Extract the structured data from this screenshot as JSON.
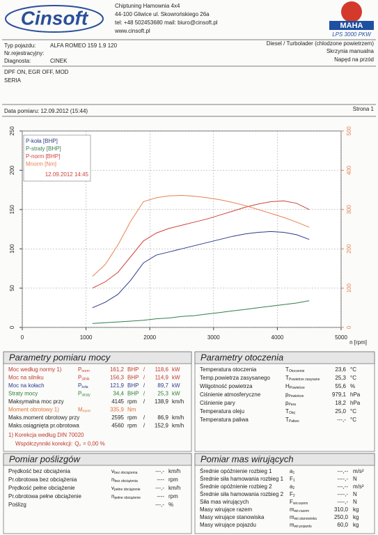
{
  "header": {
    "logo": "Cinsoft",
    "company": [
      "Chiptuning Hamownia 4x4",
      "44-100 Gliwice ul. Skowrońskiego 26a",
      "tel: +48 502453680  mail: biuro@cinsoft.pl",
      "www.cinsoft.pl"
    ],
    "brand": "MAHA",
    "model": "LPS 3000 PKW"
  },
  "vehicle": {
    "fields": [
      {
        "label": "Typ pojazdu:",
        "value": "ALFA ROMEO 159 1.9 120"
      },
      {
        "label": "Nr.rejestracyjny:"
      },
      {
        "label": "Diagnosta:",
        "value": "CINEK"
      }
    ],
    "engine": [
      "Diesel / Turbolader (chlodzone powietrzem)",
      "Skrzynia manualna",
      "Napęd na przód"
    ],
    "notes": [
      "DPF ON, EGR OFF, MOD",
      "SERIA"
    ],
    "date": "Data pomiaru: 12.09.2012 (15:44)",
    "page": "Strona 1"
  },
  "chart_data": {
    "type": "line",
    "x_label": "n [rpm]",
    "xlim": [
      0,
      5000
    ],
    "xticks": [
      0,
      1000,
      2000,
      3000,
      4000,
      5000
    ],
    "ylim": [
      0,
      250
    ],
    "yticks": [
      0,
      50,
      100,
      150,
      200,
      250
    ],
    "y2lim": [
      0,
      500
    ],
    "y2ticks": [
      0,
      100,
      200,
      300,
      400,
      500
    ],
    "grid": true,
    "legend": "top-left",
    "legend_note": "12.09.2012 14:45",
    "x": [
      1100,
      1300,
      1500,
      1700,
      1900,
      2100,
      2300,
      2500,
      2700,
      2900,
      3100,
      3300,
      3500,
      3700,
      3900,
      4100,
      4300,
      4500
    ],
    "series": [
      {
        "name": "P-koła [BHP]",
        "color": "#2b3a8a",
        "values": [
          25,
          32,
          42,
          60,
          82,
          92,
          96,
          100,
          104,
          108,
          112,
          116,
          119,
          121,
          122,
          121,
          118,
          112
        ]
      },
      {
        "name": "P-straty [BHP]",
        "color": "#2e7d4f",
        "values": [
          5,
          6,
          7,
          8,
          9,
          11,
          12,
          14,
          15,
          17,
          19,
          21,
          23,
          25,
          27,
          29,
          31,
          34
        ]
      },
      {
        "name": "P-norm [BHP]",
        "color": "#d0403a",
        "values": [
          50,
          58,
          70,
          90,
          110,
          120,
          126,
          130,
          134,
          138,
          143,
          148,
          153,
          157,
          160,
          161,
          158,
          150
        ]
      },
      {
        "name": "Mnorm [Nm]",
        "color": "#e8804f",
        "axis": "y2",
        "values": [
          130,
          160,
          210,
          270,
          320,
          330,
          335,
          336,
          334,
          330,
          325,
          318,
          310,
          300,
          290,
          280,
          268,
          255
        ]
      }
    ]
  },
  "sections": [
    {
      "title": "Parametry pomiaru mocy",
      "rows": [
        {
          "label": "Moc według normy 1)",
          "symbol": {
            "main": "P",
            "sub": "norm"
          },
          "cells": [
            "161,2",
            "BHP",
            "/",
            "118,6",
            "kW"
          ],
          "color": "#c0392b"
        },
        {
          "label": "Moc na silniku",
          "symbol": {
            "main": "P",
            "sub": "silnik"
          },
          "cells": [
            "156,3",
            "BHP",
            "/",
            "114,9",
            "kW"
          ],
          "color": "#c0392b"
        },
        {
          "label": "Moc na kołach",
          "symbol": {
            "main": "P",
            "sub": "koła"
          },
          "cells": [
            "121,9",
            "BHP",
            "/",
            "89,7",
            "kW"
          ],
          "color": "#2b3a8a"
        },
        {
          "label": "Straty mocy",
          "symbol": {
            "main": "P",
            "sub": "straty"
          },
          "cells": [
            "34,4",
            "BHP",
            "/",
            "25,3",
            "kW"
          ],
          "color": "#2e7d32"
        },
        {
          "label": "Maksymalna moc przy",
          "cells": [
            "4145",
            "rpm",
            "/",
            "138,9",
            "km/h"
          ]
        },
        {
          "label": "Moment obrotowy 1)",
          "symbol": {
            "main": "M",
            "sub": "norm"
          },
          "cells": [
            "335,9",
            "Nm"
          ],
          "color": "#e07030"
        },
        {
          "label": "Maks.moment obrotowy przy",
          "cells": [
            "2595",
            "rpm",
            "/",
            "86,9",
            "km/h"
          ]
        },
        {
          "label": "Maks.osiągnięta pr.obrotowa",
          "cells": [
            "4560",
            "rpm",
            "/",
            "152,9",
            "km/h"
          ]
        }
      ],
      "footnotes": [
        {
          "text": "1) Korekcja według DIN 70020"
        },
        {
          "text": "Współczynniki korekcji:",
          "symbol": {
            "main": "Q",
            "sub": "v"
          },
          "value": "= 0,00 %"
        }
      ]
    },
    {
      "title": "Parametry otoczenia",
      "rows": [
        {
          "label": "Temperatura otoczenia",
          "symbol": {
            "main": "T",
            "sub": "Otoczenie"
          },
          "cells": [
            "23,6",
            "°C"
          ]
        },
        {
          "label": "Temp.powietrza zasysanego",
          "symbol": {
            "main": "T",
            "sub": "Powietrze zasysane"
          },
          "cells": [
            "25,3",
            "°C"
          ]
        },
        {
          "label": "Wilgotność powietrza",
          "symbol": {
            "main": "H",
            "sub": "Powietrze"
          },
          "cells": [
            "55,6",
            "%"
          ]
        },
        {
          "label": "Ciśnienie atmosferyczne",
          "symbol": {
            "main": "p",
            "sub": "Powietrze"
          },
          "cells": [
            "979,1",
            "hPa"
          ]
        },
        {
          "label": "Ciśnienie pary",
          "symbol": {
            "main": "p",
            "sub": "Para"
          },
          "cells": [
            "18,2",
            "hPa"
          ]
        },
        {
          "label": "Temperatura oleju",
          "symbol": {
            "main": "T",
            "sub": "Olej"
          },
          "cells": [
            "25,0",
            "°C"
          ]
        },
        {
          "label": "Temperatura paliwa",
          "symbol": {
            "main": "T",
            "sub": "Paliwo"
          },
          "cells": [
            "---,-",
            "°C"
          ]
        }
      ]
    },
    {
      "title": "Pomiar poślizgów",
      "rows": [
        {
          "label": "Prędkość bez obciążenia",
          "symbol": {
            "main": "v",
            "sub": "bez obciążenia"
          },
          "cells": [
            "---,-",
            "km/h"
          ]
        },
        {
          "label": "Pr.obrotowa bez obciążenia",
          "symbol": {
            "main": "n",
            "sub": "bez obciążenia"
          },
          "cells": [
            "----",
            "rpm"
          ]
        },
        {
          "label": "Prędkość pełne obciążenie",
          "symbol": {
            "main": "v",
            "sub": "pełne obciążenie"
          },
          "cells": [
            "---,-",
            "km/h"
          ]
        },
        {
          "label": "Pr.obrotowa pełne obciążenie",
          "symbol": {
            "main": "n",
            "sub": "pełne obciążenie"
          },
          "cells": [
            "----",
            "rpm"
          ]
        },
        {
          "label": "Poślizg",
          "cells": [
            "---,-",
            "%"
          ]
        }
      ]
    },
    {
      "title": "Pomiar mas wirujących",
      "rows": [
        {
          "label": "Średnie opóźnienie rozbieg 1",
          "symbol": {
            "main": "a",
            "sub": "1"
          },
          "cells": [
            "---,--",
            "m/s²"
          ]
        },
        {
          "label": "Średnie siła hamowania rozbieg 1",
          "symbol": {
            "main": "F",
            "sub": "1"
          },
          "cells": [
            "----,-",
            "N"
          ]
        },
        {
          "label": "Średnie opóźnienie rozbieg 2",
          "symbol": {
            "main": "a",
            "sub": "2"
          },
          "cells": [
            "---,--",
            "m/s²"
          ]
        },
        {
          "label": "Średnie siła hamowania rozbieg 2",
          "symbol": {
            "main": "F",
            "sub": "2"
          },
          "cells": [
            "----,-",
            "N"
          ]
        },
        {
          "label": "Siła mas wirujących",
          "symbol": {
            "main": "F",
            "sub": "wir.razem"
          },
          "cells": [
            "----,-",
            "N"
          ]
        },
        {
          "label": "Masy wirujące razem",
          "symbol": {
            "main": "m",
            "sub": "wir.razem"
          },
          "cells": [
            "310,0",
            "kg"
          ]
        },
        {
          "label": "Masy wirujące stanowiska",
          "symbol": {
            "main": "m",
            "sub": "wir.stanowiska"
          },
          "cells": [
            "250,0",
            "kg"
          ]
        },
        {
          "label": "Masy wirujące pojazdu",
          "symbol": {
            "main": "m",
            "sub": "wir.pojazdu"
          },
          "cells": [
            "60,0",
            "kg"
          ]
        }
      ]
    }
  ]
}
